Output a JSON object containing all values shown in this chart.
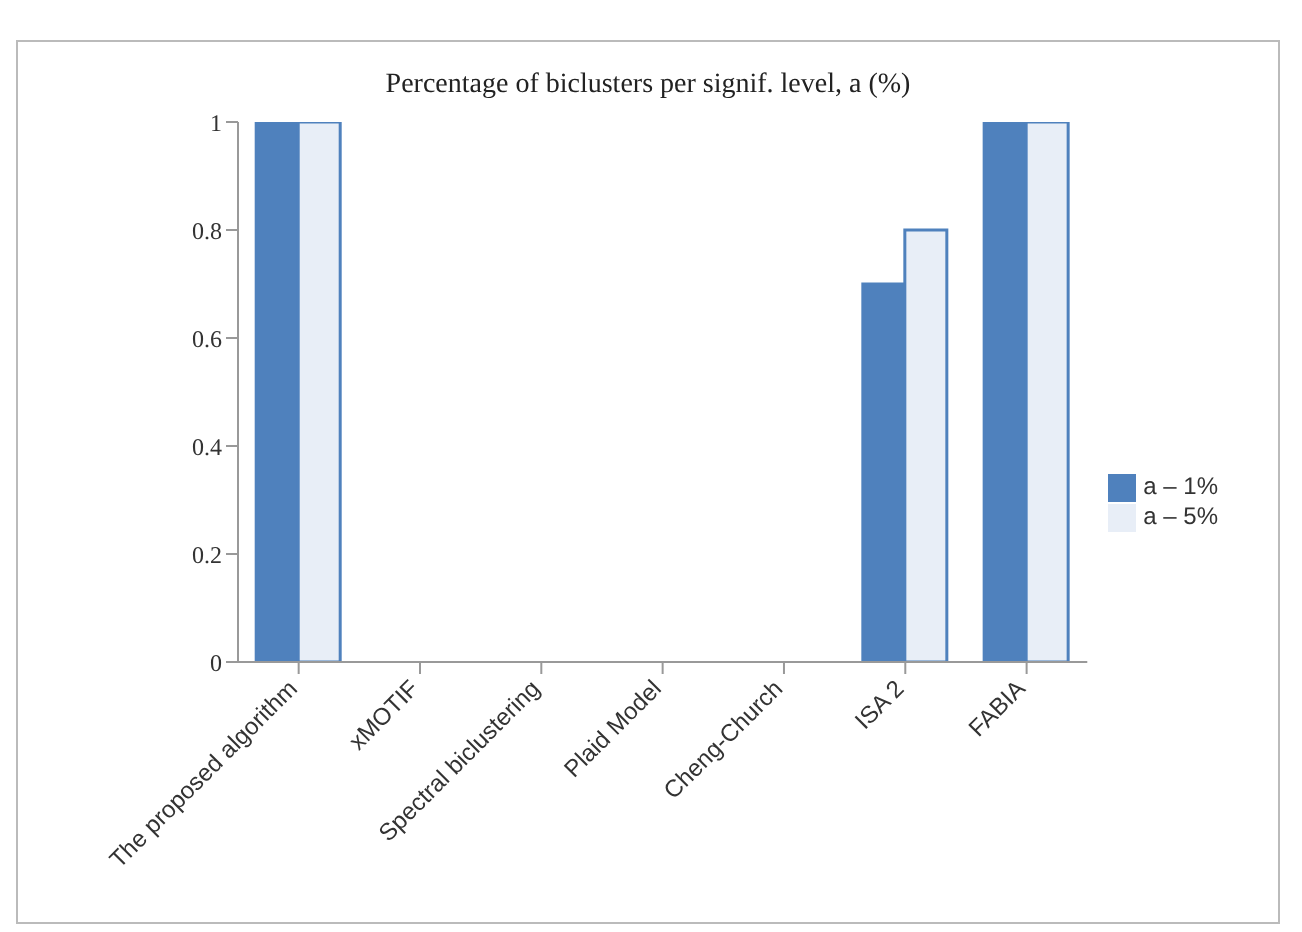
{
  "chart_data": {
    "type": "bar",
    "title": "Percentage of biclusters per signif. level, a (%)",
    "categories": [
      "The proposed algorithm",
      "xMOTIF",
      "Spectral biclustering",
      "Plaid Model",
      "Cheng-Church",
      "ISA 2",
      "FABIA"
    ],
    "series": [
      {
        "name": "a – 1%",
        "color": "#4f81bd",
        "values": [
          1,
          0,
          0,
          0,
          0,
          0.7,
          1
        ]
      },
      {
        "name": "a – 5%",
        "color": "#e8eef7",
        "values": [
          1,
          0,
          0,
          0,
          0,
          0.8,
          1
        ]
      }
    ],
    "ylim": [
      0,
      1
    ],
    "yticks": [
      0,
      0.2,
      0.4,
      0.6,
      0.8,
      1
    ],
    "grid": false,
    "legend": "right"
  }
}
